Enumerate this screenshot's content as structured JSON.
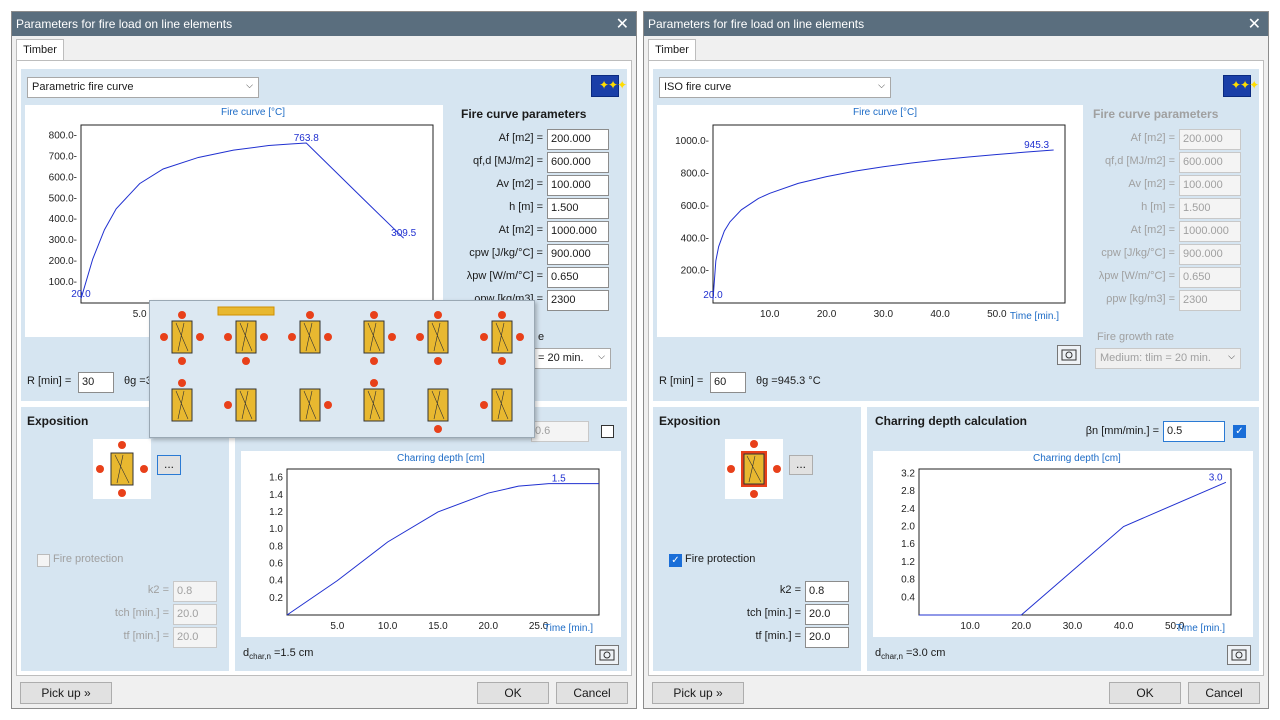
{
  "left": {
    "title": "Parameters for fire load on line elements",
    "close": "✕",
    "tab": "Timber",
    "curve_type": "Parametric fire curve",
    "fire_chart_title": "Fire curve [°C]",
    "fire_chart": {
      "type": "line",
      "ymin": 0,
      "ymax": 850,
      "xmin": 0,
      "xmax": 30,
      "yticks": [
        "800.0-",
        "700.0-",
        "600.0-",
        "500.0-",
        "400.0-",
        "300.0-",
        "200.0-",
        "100.0-"
      ],
      "ytick_values": [
        800,
        700,
        600,
        500,
        400,
        300,
        200,
        100
      ],
      "xticks": [
        "5.0"
      ],
      "xtick_values": [
        5
      ],
      "series": [
        {
          "x": [
            0,
            1,
            2,
            3,
            5,
            7,
            10,
            13,
            16,
            18,
            19.2,
            24,
            27.5
          ],
          "y": [
            20,
            210,
            350,
            450,
            570,
            640,
            695,
            730,
            752,
            760,
            763.8,
            500,
            309.5
          ]
        }
      ],
      "labels": [
        "20.0",
        "763.8",
        "309.5"
      ],
      "label_x": [
        0,
        19.2,
        27.5
      ],
      "label_y": [
        20,
        763.8,
        309.5
      ]
    },
    "params_title": "Fire curve parameters",
    "params": [
      {
        "label": "Af [m2] =",
        "value": "200.000"
      },
      {
        "label": "qf,d [MJ/m2] =",
        "value": "600.000"
      },
      {
        "label": "Av [m2] =",
        "value": "100.000"
      },
      {
        "label": "h [m] =",
        "value": "1.500"
      },
      {
        "label": "At [m2] =",
        "value": "1000.000"
      },
      {
        "label": "cpw [J/kg/°C] =",
        "value": "900.000"
      },
      {
        "label": "λpw [W/m/°C] =",
        "value": "0.650"
      },
      {
        "label": "ρpw [kg/m3] =",
        "value": "2300"
      }
    ],
    "growth_partial": "e",
    "growth_value": "= 20 min.",
    "r_label": "R [min] =",
    "r_value": "30",
    "theta_partial": "θg =3",
    "exposition_title": "Exposition",
    "dots": "...",
    "fire_protection": "Fire protection",
    "k2_label": "k2 =",
    "k2_value": "0.8",
    "tch_label": "tch [min.] =",
    "tch_value": "20.0",
    "tf_label": "tf [min.] =",
    "tf_value": "20.0",
    "beta_value": "0.6",
    "char_chart_title": "Charring depth [cm]",
    "char_chart": {
      "type": "line",
      "ymin": 0,
      "ymax": 1.7,
      "xmin": 0,
      "xmax": 31,
      "yticks": [
        "1.6",
        "1.4",
        "1.2",
        "1.0",
        "0.8",
        "0.6",
        "0.4",
        "0.2"
      ],
      "ytick_values": [
        1.6,
        1.4,
        1.2,
        1.0,
        0.8,
        0.6,
        0.4,
        0.2
      ],
      "xticks": [
        "5.0",
        "10.0",
        "15.0",
        "20.0",
        "25.0"
      ],
      "xtick_values": [
        5,
        10,
        15,
        20,
        25
      ],
      "series": [
        {
          "x": [
            0,
            5,
            10,
            15,
            20,
            23,
            25,
            26,
            31
          ],
          "y": [
            0,
            0.4,
            0.85,
            1.2,
            1.42,
            1.5,
            1.52,
            1.53,
            1.53
          ]
        }
      ],
      "labels": [
        "1.5"
      ],
      "label_x": [
        27
      ],
      "label_y": [
        1.53
      ],
      "xlabel": "Time [min.]"
    },
    "dchar": "dchar,n =1.5 cm",
    "pickup": "Pick up »",
    "ok": "OK",
    "cancel": "Cancel"
  },
  "right": {
    "title": "Parameters for fire load on line elements",
    "close": "✕",
    "tab": "Timber",
    "curve_type": "ISO fire curve",
    "fire_chart_title": "Fire curve [°C]",
    "fire_chart": {
      "type": "line",
      "ymin": 0,
      "ymax": 1100,
      "xmin": 0,
      "xmax": 62,
      "yticks": [
        "1000.0-",
        "800.0-",
        "600.0-",
        "400.0-",
        "200.0-"
      ],
      "ytick_values": [
        1000,
        800,
        600,
        400,
        200
      ],
      "xticks": [
        "10.0",
        "20.0",
        "30.0",
        "40.0",
        "50.0"
      ],
      "xtick_values": [
        10,
        20,
        30,
        40,
        50
      ],
      "series": [
        {
          "x": [
            0,
            0.5,
            1,
            2,
            3,
            5,
            8,
            10,
            15,
            20,
            25,
            30,
            35,
            40,
            45,
            50,
            55,
            60
          ],
          "y": [
            20,
            261,
            349,
            445,
            502,
            576,
            646,
            678,
            739,
            781,
            815,
            842,
            865,
            885,
            902,
            918,
            932,
            945.3
          ]
        }
      ],
      "labels": [
        "945.3",
        "20.0"
      ],
      "label_x": [
        57,
        0
      ],
      "label_y": [
        945.3,
        20
      ],
      "xlabel": "Time [min.]"
    },
    "params_title": "Fire curve parameters",
    "params": [
      {
        "label": "Af [m2] =",
        "value": "200.000"
      },
      {
        "label": "qf,d [MJ/m2] =",
        "value": "600.000"
      },
      {
        "label": "Av [m2] =",
        "value": "100.000"
      },
      {
        "label": "h [m] =",
        "value": "1.500"
      },
      {
        "label": "At [m2] =",
        "value": "1000.000"
      },
      {
        "label": "cpw [J/kg/°C] =",
        "value": "900.000"
      },
      {
        "label": "λpw [W/m/°C] =",
        "value": "0.650"
      },
      {
        "label": "ρpw [kg/m3] =",
        "value": "2300"
      }
    ],
    "growth_label": "Fire growth rate",
    "growth_value": "Medium: tlim = 20 min.",
    "r_label": "R [min] =",
    "r_value": "60",
    "theta": "θg =945.3 °C",
    "exposition_title": "Exposition",
    "dots": "...",
    "charring_title": "Charring depth calculation",
    "beta_label": "βn [mm/min.] =",
    "beta_value": "0.5",
    "fire_protection": "Fire protection",
    "k2_label": "k2 =",
    "k2_value": "0.8",
    "tch_label": "tch [min.] =",
    "tch_value": "20.0",
    "tf_label": "tf [min.] =",
    "tf_value": "20.0",
    "char_chart_title": "Charring depth [cm]",
    "char_chart": {
      "type": "line",
      "ymin": 0,
      "ymax": 3.3,
      "xmin": 0,
      "xmax": 61,
      "yticks": [
        "3.2",
        "2.8",
        "2.4",
        "2.0",
        "1.6",
        "1.2",
        "0.8",
        "0.4"
      ],
      "ytick_values": [
        3.2,
        2.8,
        2.4,
        2.0,
        1.6,
        1.2,
        0.8,
        0.4
      ],
      "xticks": [
        "10.0",
        "20.0",
        "30.0",
        "40.0",
        "50.0"
      ],
      "xtick_values": [
        10,
        20,
        30,
        40,
        50
      ],
      "series": [
        {
          "x": [
            0,
            20,
            40,
            60
          ],
          "y": [
            0,
            0,
            2.0,
            3.0
          ]
        }
      ],
      "labels": [
        "3.0"
      ],
      "label_x": [
        58
      ],
      "label_y": [
        3.0
      ],
      "xlabel": "Time [min.]"
    },
    "dchar": "dchar,n =3.0 cm",
    "pickup": "Pick up »",
    "ok": "OK",
    "cancel": "Cancel"
  }
}
